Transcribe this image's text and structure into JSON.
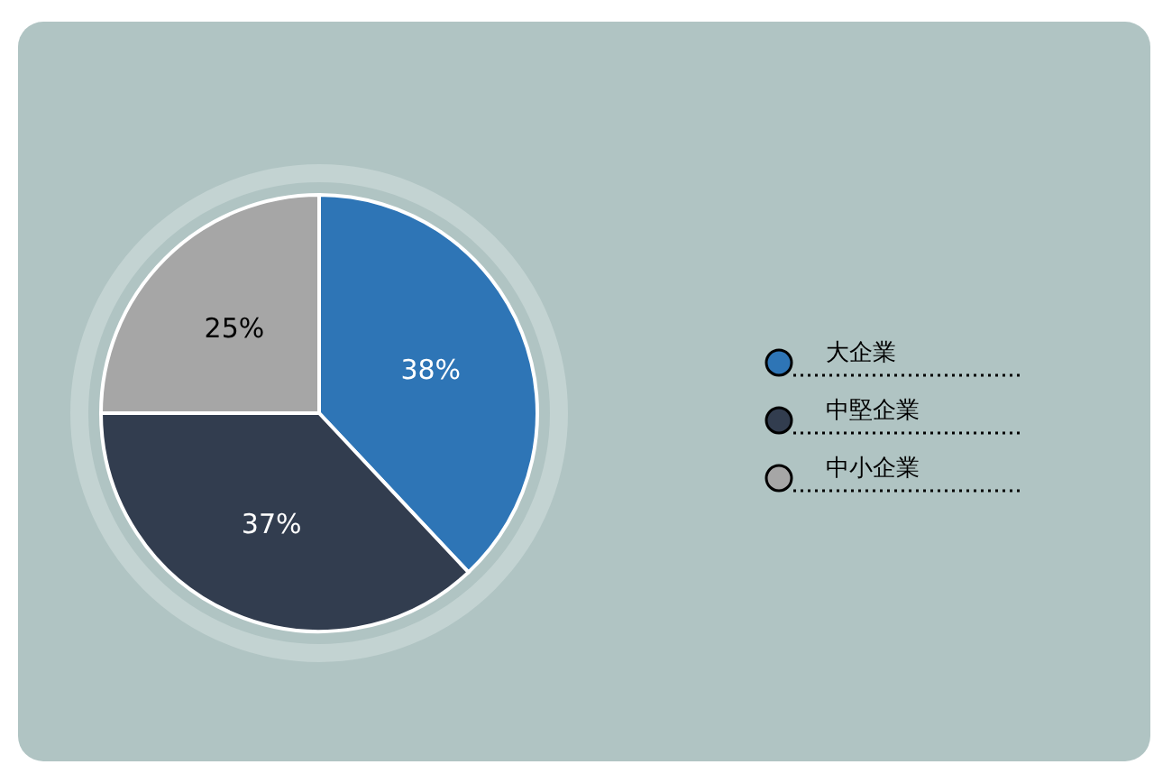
{
  "chart_data": {
    "type": "pie",
    "categories": [
      "大企業",
      "中堅企業",
      "中小企業"
    ],
    "values": [
      38,
      37,
      25
    ],
    "colors": [
      "#2e75b6",
      "#323d4f",
      "#a6a6a6"
    ],
    "value_labels": [
      "38%",
      "37%",
      "25%"
    ],
    "legend": "right"
  }
}
